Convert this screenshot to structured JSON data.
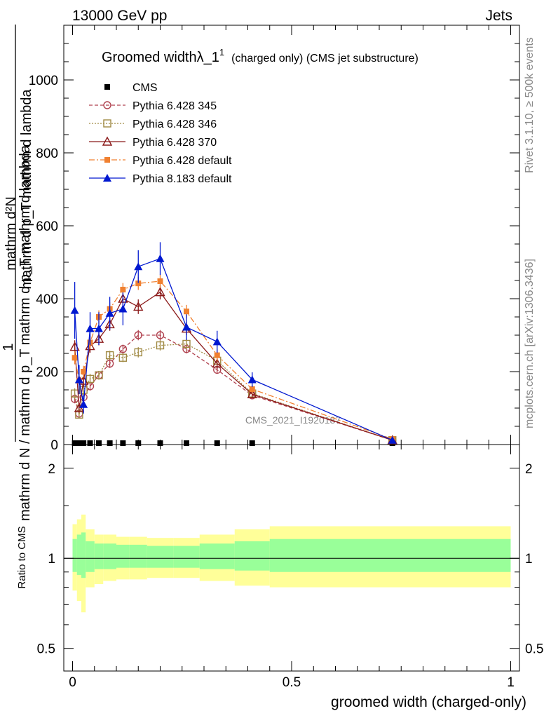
{
  "header": {
    "left": "13000 GeV pp",
    "right": "Jets"
  },
  "side_labels": {
    "rivet": "Rivet 3.1.10, ≥ 500k events",
    "mcplots": "mcplots.cern.ch [arXiv:1306.3436]"
  },
  "watermark": "CMS_2021_I1920187",
  "colors": {
    "cms": "#000000",
    "p345": "#b0424f",
    "p346": "#a08a44",
    "p370": "#8b1a1a",
    "p6def": "#f08030",
    "p8": "#0018d0",
    "band_outer": "#ffff99",
    "band_inner": "#99ff99"
  },
  "chart_data": [
    {
      "type": "line",
      "title": "Groomed width",
      "title_symbol": "λ_1",
      "title_sup": "1",
      "title_suffix": "(charged only) (CMS jet substructure)",
      "ylabel_numer": "1",
      "ylabel_numer_part": "mathrm d²N",
      "ylabel_denom": "mathrm d N / mathrm d p_T mathrm d p_T mathrm d lambda",
      "ylabel_y_main": "mathrm d N / mathrm d p_T mathrm d p_T mathrm d lambda",
      "ylabel_top": "mathrm d²N",
      "ylabel_top_sub": "mathrm d p_T mathrm d lambda",
      "xlim": [
        -0.02,
        1.02
      ],
      "ylim": [
        0,
        1150
      ],
      "yticks": [
        0,
        200,
        400,
        600,
        800,
        1000
      ],
      "ytick_labels": [
        "0",
        "200",
        "400",
        "600",
        "800",
        "1000"
      ],
      "x": [
        0.005,
        0.015,
        0.025,
        0.04,
        0.06,
        0.085,
        0.115,
        0.15,
        0.2,
        0.26,
        0.33,
        0.41,
        0.73
      ],
      "series": [
        {
          "name": "CMS",
          "key": "cms",
          "marker": "square-filled",
          "dash": "",
          "values": [
            0,
            0,
            0,
            0,
            0,
            0,
            0,
            0,
            0,
            0,
            0,
            0,
            0
          ],
          "err": []
        },
        {
          "name": "Pythia 6.428 345",
          "key": "p345",
          "marker": "circle-open",
          "dash": "5,3",
          "values": [
            125,
            85,
            130,
            160,
            190,
            222,
            262,
            300,
            300,
            262,
            205,
            135,
            12
          ],
          "err": [
            12,
            10,
            12,
            12,
            12,
            12,
            12,
            14,
            14,
            12,
            10,
            8,
            3
          ]
        },
        {
          "name": "Pythia 6.428 346",
          "key": "p346",
          "marker": "square-open",
          "dash": "2,2",
          "values": [
            140,
            82,
            150,
            180,
            190,
            245,
            238,
            253,
            272,
            276,
            230,
            140,
            12
          ],
          "err": [
            14,
            10,
            14,
            14,
            12,
            12,
            12,
            14,
            14,
            14,
            12,
            8,
            3
          ]
        },
        {
          "name": "Pythia 6.428 370",
          "key": "p370",
          "marker": "triangle-open",
          "dash": "",
          "values": [
            268,
            100,
            175,
            270,
            290,
            330,
            400,
            378,
            418,
            318,
            222,
            138,
            12
          ],
          "err": [
            18,
            12,
            18,
            18,
            18,
            18,
            20,
            20,
            20,
            18,
            14,
            10,
            3
          ]
        },
        {
          "name": "Pythia 6.428 default",
          "key": "p6def",
          "marker": "square-filled",
          "dash": "8,3,2,3",
          "values": [
            238,
            175,
            200,
            280,
            350,
            372,
            425,
            442,
            448,
            365,
            245,
            152,
            15
          ],
          "err": [
            18,
            16,
            16,
            18,
            18,
            18,
            18,
            18,
            18,
            18,
            16,
            12,
            4
          ]
        },
        {
          "name": "Pythia 8.183 default",
          "key": "p8",
          "marker": "triangle-filled",
          "dash": "",
          "values": [
            368,
            178,
            110,
            318,
            318,
            360,
            372,
            488,
            510,
            322,
            282,
            178,
            12
          ],
          "err": [
            78,
            40,
            25,
            45,
            45,
            45,
            45,
            45,
            45,
            35,
            30,
            20,
            5
          ]
        }
      ]
    },
    {
      "type": "area",
      "ylabel": "Ratio to CMS",
      "xlabel": "groomed width (charged-only)",
      "xlim": [
        -0.02,
        1.02
      ],
      "ylim": [
        0.42,
        2.4
      ],
      "yticks": [
        0.5,
        1,
        2
      ],
      "ytick_labels": [
        "0.5",
        "1",
        "2"
      ],
      "xticks": [
        0,
        0.5,
        1
      ],
      "xtick_labels": [
        "0",
        "0.5",
        "1"
      ],
      "reference": 1,
      "bins": [
        0,
        0.01,
        0.02,
        0.03,
        0.05,
        0.07,
        0.1,
        0.13,
        0.17,
        0.23,
        0.29,
        0.37,
        0.45,
        1.0
      ],
      "outer_low": [
        0.78,
        0.72,
        0.66,
        0.8,
        0.82,
        0.84,
        0.85,
        0.85,
        0.86,
        0.86,
        0.84,
        0.81,
        0.8
      ],
      "outer_high": [
        1.3,
        1.35,
        1.4,
        1.25,
        1.2,
        1.2,
        1.18,
        1.18,
        1.17,
        1.17,
        1.2,
        1.25,
        1.28
      ],
      "inner_low": [
        0.9,
        0.88,
        0.86,
        0.9,
        0.92,
        0.92,
        0.93,
        0.93,
        0.93,
        0.93,
        0.92,
        0.91,
        0.9
      ],
      "inner_high": [
        1.16,
        1.2,
        1.22,
        1.14,
        1.12,
        1.12,
        1.11,
        1.11,
        1.1,
        1.1,
        1.12,
        1.14,
        1.16
      ]
    }
  ]
}
